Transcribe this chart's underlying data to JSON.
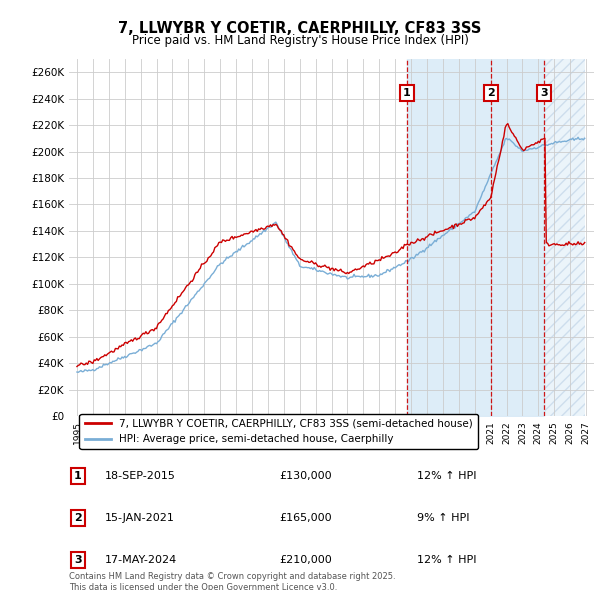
{
  "title": "7, LLWYBR Y COETIR, CAERPHILLY, CF83 3SS",
  "subtitle": "Price paid vs. HM Land Registry's House Price Index (HPI)",
  "ylim": [
    0,
    270000
  ],
  "yticks": [
    0,
    20000,
    40000,
    60000,
    80000,
    100000,
    120000,
    140000,
    160000,
    180000,
    200000,
    220000,
    240000,
    260000
  ],
  "xlim_start": 1994.5,
  "xlim_end": 2027.5,
  "sales": [
    {
      "label": "1",
      "date_str": "18-SEP-2015",
      "date_x": 2015.72,
      "price": 130000,
      "pct": "12%",
      "dir": "↑"
    },
    {
      "label": "2",
      "date_str": "15-JAN-2021",
      "date_x": 2021.04,
      "price": 165000,
      "pct": "9%",
      "dir": "↑"
    },
    {
      "label": "3",
      "date_str": "17-MAY-2024",
      "date_x": 2024.38,
      "price": 210000,
      "pct": "12%",
      "dir": "↑"
    }
  ],
  "legend_entries": [
    "7, LLWYBR Y COETIR, CAERPHILLY, CF83 3SS (semi-detached house)",
    "HPI: Average price, semi-detached house, Caerphilly"
  ],
  "footnote": "Contains HM Land Registry data © Crown copyright and database right 2025.\nThis data is licensed under the Open Government Licence v3.0.",
  "red_color": "#cc0000",
  "blue_color": "#7aaed6",
  "shade_color": "#d8eaf7",
  "grid_color": "#cccccc",
  "background_color": "#ffffff"
}
